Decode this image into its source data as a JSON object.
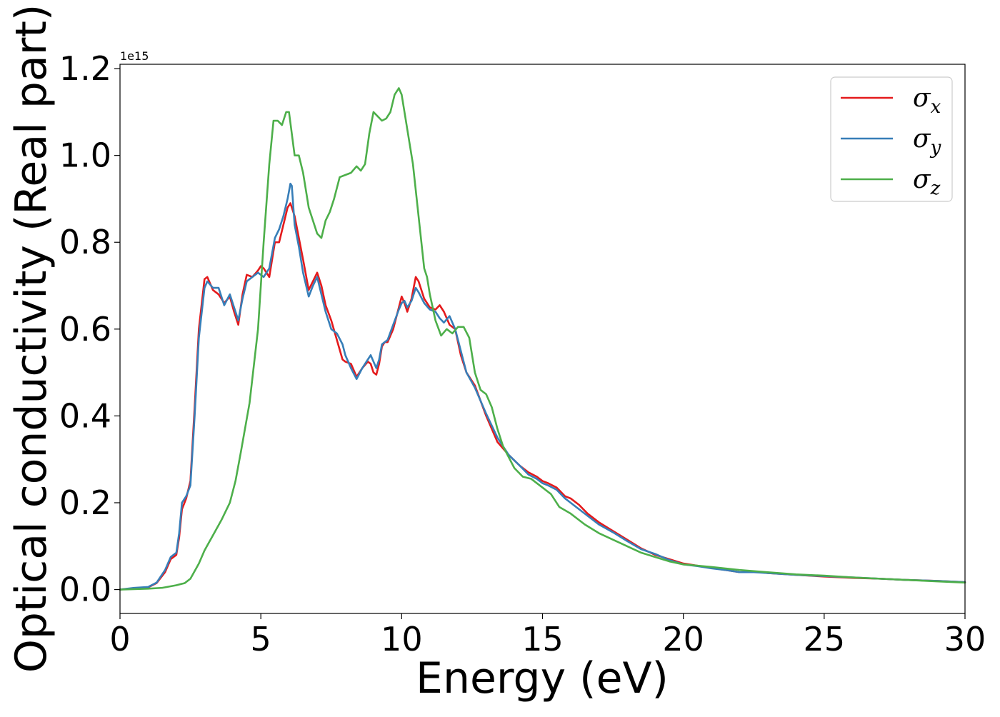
{
  "chart_data": {
    "type": "line",
    "title": "",
    "xlabel": "Energy (eV)",
    "ylabel": "Optical conductivity (Real part)",
    "y_offset_label": "1e15",
    "xlim": [
      0,
      30
    ],
    "ylim": [
      -0.055,
      1.21
    ],
    "xticks": [
      0,
      5,
      10,
      15,
      20,
      25,
      30
    ],
    "xtick_labels": [
      "0",
      "5",
      "10",
      "15",
      "20",
      "25",
      "30"
    ],
    "yticks": [
      0.0,
      0.2,
      0.4,
      0.6,
      0.8,
      1.0,
      1.2
    ],
    "ytick_labels": [
      "0.0",
      "0.2",
      "0.4",
      "0.6",
      "0.8",
      "1.0",
      "1.2"
    ],
    "grid": false,
    "legend_position": "top-right",
    "series": [
      {
        "name": "σx",
        "legend_main": "σ",
        "legend_sub": "x",
        "color": "#e41a1c",
        "x": [
          0,
          0.5,
          1.0,
          1.3,
          1.6,
          1.8,
          2.0,
          2.1,
          2.2,
          2.35,
          2.5,
          2.65,
          2.8,
          3.0,
          3.1,
          3.3,
          3.5,
          3.7,
          3.9,
          4.05,
          4.2,
          4.35,
          4.5,
          4.7,
          4.9,
          5.0,
          5.1,
          5.3,
          5.5,
          5.65,
          5.8,
          5.95,
          6.05,
          6.2,
          6.35,
          6.5,
          6.7,
          6.85,
          7.0,
          7.15,
          7.3,
          7.5,
          7.7,
          7.9,
          8.0,
          8.2,
          8.4,
          8.6,
          8.8,
          8.9,
          9.0,
          9.1,
          9.2,
          9.3,
          9.4,
          9.5,
          9.7,
          9.9,
          10.0,
          10.1,
          10.2,
          10.35,
          10.5,
          10.6,
          10.8,
          11.0,
          11.2,
          11.35,
          11.5,
          11.7,
          11.9,
          12.1,
          12.3,
          12.6,
          13.0,
          13.4,
          13.8,
          14.2,
          14.5,
          14.8,
          15.0,
          15.2,
          15.5,
          15.8,
          16.0,
          16.3,
          16.6,
          17.0,
          17.5,
          18.0,
          18.5,
          19.0,
          19.5,
          20.0,
          20.5,
          21.0,
          21.5,
          22.0,
          22.5,
          23.0,
          24.0,
          25.0,
          26.0,
          27.0,
          28.0,
          29.0,
          30.0
        ],
        "values": [
          0.0,
          0.003,
          0.005,
          0.015,
          0.04,
          0.07,
          0.08,
          0.12,
          0.185,
          0.21,
          0.25,
          0.42,
          0.6,
          0.715,
          0.72,
          0.69,
          0.68,
          0.66,
          0.675,
          0.64,
          0.61,
          0.68,
          0.725,
          0.72,
          0.735,
          0.745,
          0.74,
          0.72,
          0.8,
          0.8,
          0.84,
          0.88,
          0.89,
          0.86,
          0.81,
          0.76,
          0.69,
          0.71,
          0.73,
          0.7,
          0.655,
          0.62,
          0.575,
          0.53,
          0.525,
          0.52,
          0.49,
          0.51,
          0.525,
          0.52,
          0.5,
          0.495,
          0.52,
          0.56,
          0.57,
          0.57,
          0.6,
          0.65,
          0.675,
          0.66,
          0.64,
          0.67,
          0.72,
          0.71,
          0.67,
          0.65,
          0.645,
          0.655,
          0.64,
          0.61,
          0.6,
          0.54,
          0.5,
          0.47,
          0.4,
          0.34,
          0.31,
          0.285,
          0.27,
          0.26,
          0.25,
          0.245,
          0.235,
          0.215,
          0.21,
          0.195,
          0.175,
          0.155,
          0.135,
          0.115,
          0.095,
          0.08,
          0.07,
          0.06,
          0.055,
          0.05,
          0.045,
          0.04,
          0.042,
          0.038,
          0.034,
          0.03,
          0.027,
          0.025,
          0.022,
          0.02,
          0.017
        ]
      },
      {
        "name": "σy",
        "legend_main": "σ",
        "legend_sub": "y",
        "color": "#377eb8",
        "x": [
          0,
          0.5,
          1.0,
          1.3,
          1.6,
          1.8,
          2.0,
          2.1,
          2.2,
          2.35,
          2.5,
          2.65,
          2.8,
          3.0,
          3.1,
          3.3,
          3.5,
          3.7,
          3.9,
          4.05,
          4.2,
          4.35,
          4.5,
          4.7,
          4.9,
          5.0,
          5.1,
          5.3,
          5.5,
          5.65,
          5.8,
          5.95,
          6.05,
          6.1,
          6.2,
          6.35,
          6.5,
          6.7,
          6.85,
          7.0,
          7.15,
          7.3,
          7.5,
          7.7,
          7.9,
          8.0,
          8.2,
          8.4,
          8.6,
          8.8,
          8.9,
          9.0,
          9.1,
          9.2,
          9.3,
          9.4,
          9.5,
          9.7,
          9.9,
          10.0,
          10.1,
          10.2,
          10.35,
          10.5,
          10.6,
          10.8,
          11.0,
          11.2,
          11.35,
          11.5,
          11.7,
          11.9,
          12.1,
          12.3,
          12.6,
          13.0,
          13.4,
          13.8,
          14.2,
          14.5,
          14.8,
          15.0,
          15.2,
          15.5,
          15.8,
          16.0,
          16.3,
          16.6,
          17.0,
          17.5,
          18.0,
          18.5,
          19.0,
          19.5,
          20.0,
          20.5,
          21.0,
          21.5,
          22.0,
          22.5,
          23.0,
          24.0,
          25.0,
          26.0,
          27.0,
          28.0,
          29.0,
          30.0
        ],
        "values": [
          0.0,
          0.004,
          0.006,
          0.016,
          0.045,
          0.075,
          0.085,
          0.13,
          0.2,
          0.215,
          0.24,
          0.4,
          0.58,
          0.695,
          0.71,
          0.695,
          0.695,
          0.655,
          0.68,
          0.65,
          0.62,
          0.67,
          0.71,
          0.72,
          0.73,
          0.725,
          0.72,
          0.74,
          0.81,
          0.83,
          0.86,
          0.9,
          0.935,
          0.93,
          0.84,
          0.79,
          0.73,
          0.675,
          0.7,
          0.72,
          0.68,
          0.64,
          0.6,
          0.59,
          0.565,
          0.54,
          0.51,
          0.485,
          0.51,
          0.53,
          0.54,
          0.525,
          0.51,
          0.53,
          0.565,
          0.57,
          0.575,
          0.61,
          0.645,
          0.66,
          0.665,
          0.65,
          0.665,
          0.695,
          0.685,
          0.66,
          0.645,
          0.64,
          0.625,
          0.615,
          0.63,
          0.6,
          0.55,
          0.5,
          0.465,
          0.405,
          0.35,
          0.31,
          0.285,
          0.265,
          0.255,
          0.245,
          0.24,
          0.23,
          0.21,
          0.2,
          0.185,
          0.17,
          0.15,
          0.132,
          0.112,
          0.093,
          0.082,
          0.068,
          0.058,
          0.054,
          0.049,
          0.045,
          0.04,
          0.04,
          0.038,
          0.034,
          0.031,
          0.028,
          0.025,
          0.022,
          0.02,
          0.017
        ]
      },
      {
        "name": "σz",
        "legend_main": "σ",
        "legend_sub": "z",
        "color": "#4daf4a",
        "x": [
          0,
          0.5,
          1.0,
          1.5,
          2.0,
          2.3,
          2.5,
          2.8,
          3.0,
          3.3,
          3.6,
          3.9,
          4.1,
          4.3,
          4.6,
          4.9,
          5.1,
          5.3,
          5.45,
          5.6,
          5.75,
          5.9,
          6.0,
          6.1,
          6.2,
          6.35,
          6.5,
          6.7,
          6.85,
          7.0,
          7.15,
          7.3,
          7.45,
          7.6,
          7.8,
          8.0,
          8.2,
          8.4,
          8.55,
          8.7,
          8.85,
          9.0,
          9.15,
          9.3,
          9.45,
          9.6,
          9.75,
          9.9,
          10.0,
          10.2,
          10.4,
          10.6,
          10.8,
          10.9,
          11.0,
          11.2,
          11.4,
          11.6,
          11.8,
          12.0,
          12.2,
          12.4,
          12.6,
          12.8,
          13.0,
          13.2,
          13.4,
          13.6,
          14.0,
          14.3,
          14.6,
          15.0,
          15.3,
          15.6,
          16.0,
          16.5,
          17.0,
          17.5,
          18.0,
          18.5,
          19.0,
          19.5,
          20.0,
          21.0,
          22.0,
          23.0,
          24.0,
          25.0,
          26.0,
          27.0,
          28.0,
          29.0,
          30.0
        ],
        "values": [
          0.0,
          0.001,
          0.002,
          0.004,
          0.01,
          0.015,
          0.025,
          0.06,
          0.09,
          0.125,
          0.16,
          0.2,
          0.25,
          0.32,
          0.43,
          0.6,
          0.8,
          0.98,
          1.08,
          1.08,
          1.07,
          1.1,
          1.1,
          1.05,
          1.0,
          1.0,
          0.96,
          0.88,
          0.85,
          0.82,
          0.81,
          0.85,
          0.87,
          0.9,
          0.95,
          0.955,
          0.96,
          0.975,
          0.965,
          0.98,
          1.05,
          1.1,
          1.09,
          1.08,
          1.085,
          1.1,
          1.14,
          1.155,
          1.14,
          1.06,
          0.98,
          0.86,
          0.74,
          0.72,
          0.68,
          0.62,
          0.585,
          0.6,
          0.59,
          0.605,
          0.605,
          0.58,
          0.5,
          0.46,
          0.45,
          0.42,
          0.37,
          0.33,
          0.28,
          0.26,
          0.255,
          0.235,
          0.22,
          0.19,
          0.175,
          0.15,
          0.13,
          0.115,
          0.1,
          0.085,
          0.075,
          0.065,
          0.058,
          0.052,
          0.045,
          0.04,
          0.035,
          0.032,
          0.028,
          0.025,
          0.022,
          0.019,
          0.016
        ]
      }
    ]
  }
}
